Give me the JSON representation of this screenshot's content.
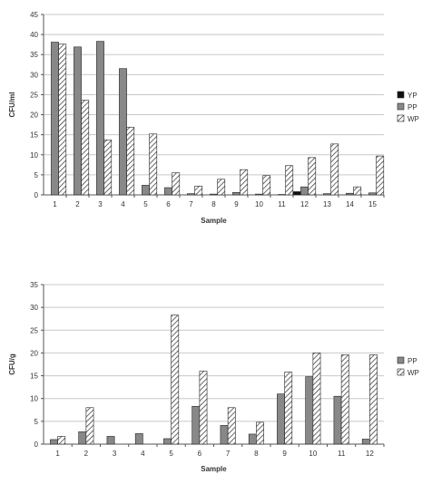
{
  "colors": {
    "yp": "#111111",
    "pp": "#888888",
    "wp_stripe": "#444444",
    "grid": "#c8c8c8",
    "axis": "#555555"
  },
  "chart_data": [
    {
      "type": "bar",
      "title": "",
      "xlabel": "Sample",
      "ylabel": "CFU/ml",
      "ylim": [
        0,
        45
      ],
      "ytick_step": 5,
      "yticks": [
        "0",
        "5",
        "10",
        "15",
        "20",
        "25",
        "30",
        "35",
        "40",
        "45"
      ],
      "categories": [
        "1",
        "2",
        "3",
        "4",
        "5",
        "6",
        "7",
        "8",
        "9",
        "10",
        "11",
        "12",
        "13",
        "14",
        "15"
      ],
      "grid": "horizontal",
      "legend_position": "right",
      "series": [
        {
          "name": "YP",
          "key": "yp",
          "values": [
            0,
            0,
            0,
            0,
            0,
            0,
            0,
            0,
            0,
            0,
            0,
            0.8,
            0,
            0,
            0
          ]
        },
        {
          "name": "PP",
          "key": "pp",
          "values": [
            38.1,
            36.9,
            38.3,
            31.5,
            2.4,
            1.8,
            0.3,
            0.2,
            0.6,
            0.2,
            0.1,
            2.0,
            0.3,
            0.4,
            0.5
          ]
        },
        {
          "name": "WP",
          "key": "wp",
          "values": [
            37.6,
            23.6,
            13.7,
            16.9,
            15.2,
            5.5,
            2.2,
            3.9,
            6.3,
            4.8,
            7.3,
            9.3,
            12.7,
            2.0,
            9.7
          ]
        }
      ]
    },
    {
      "type": "bar",
      "title": "",
      "xlabel": "Sample",
      "ylabel": "CFU/g",
      "ylim": [
        0,
        35
      ],
      "ytick_step": 5,
      "yticks": [
        "0",
        "5",
        "10",
        "15",
        "20",
        "25",
        "30",
        "35"
      ],
      "categories": [
        "1",
        "2",
        "3",
        "4",
        "5",
        "6",
        "7",
        "8",
        "9",
        "10",
        "11",
        "12"
      ],
      "grid": "horizontal",
      "legend_position": "right",
      "series": [
        {
          "name": "PP",
          "key": "pp",
          "values": [
            1.0,
            2.7,
            1.7,
            2.3,
            1.2,
            8.3,
            4.1,
            2.2,
            11.0,
            14.8,
            10.5,
            1.1
          ]
        },
        {
          "name": "WP",
          "key": "wp",
          "values": [
            1.7,
            8.0,
            0,
            0,
            28.3,
            16.0,
            8.0,
            4.8,
            15.8,
            20.0,
            19.6,
            19.6
          ]
        }
      ]
    }
  ]
}
